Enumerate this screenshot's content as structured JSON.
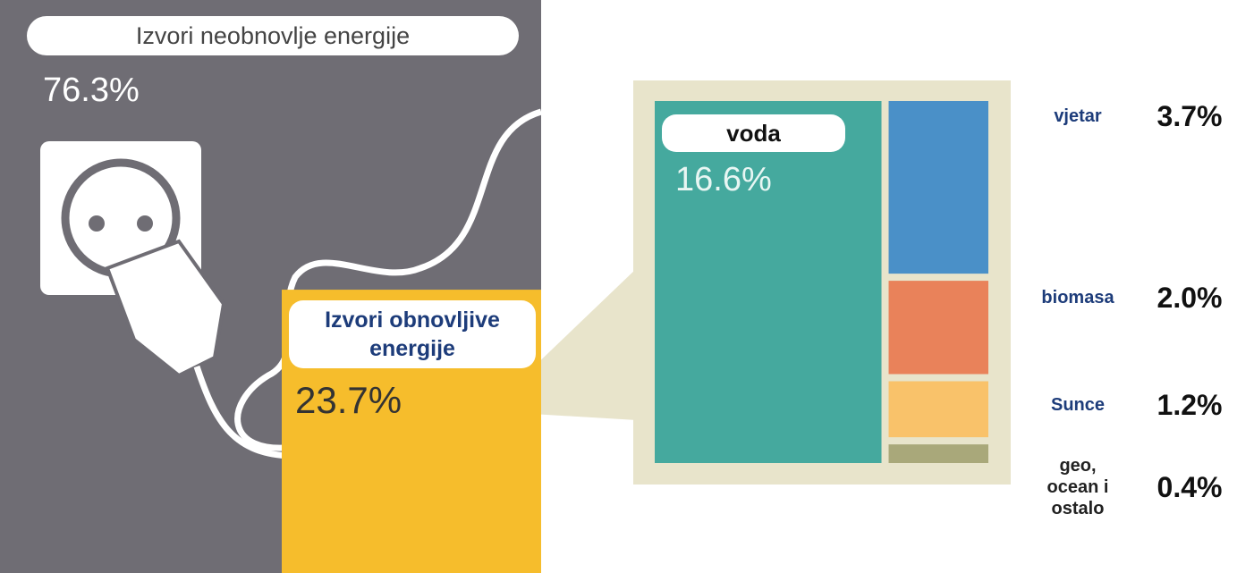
{
  "chart_data": [
    {
      "type": "treemap",
      "categories": [
        "Izvori neobnovlje energije",
        "Izvori obnovljive energije"
      ],
      "values": [
        76.3,
        23.7
      ],
      "value_labels": [
        "76.3%",
        "23.7%"
      ],
      "colors": [
        "#6f6d74",
        "#f6bd2c"
      ]
    },
    {
      "type": "treemap",
      "categories": [
        "voda",
        "vjetar",
        "biomasa",
        "Sunce",
        "geo, ocean i ostalo"
      ],
      "values": [
        16.6,
        3.7,
        2.0,
        1.2,
        0.4
      ],
      "value_labels": [
        "16.6%",
        "3.7%",
        "2.0%",
        "1.2%",
        "0.4%"
      ],
      "colors": [
        "#45a99e",
        "#4a90c8",
        "#e9825a",
        "#f9c26a",
        "#a9a87a"
      ]
    }
  ]
}
